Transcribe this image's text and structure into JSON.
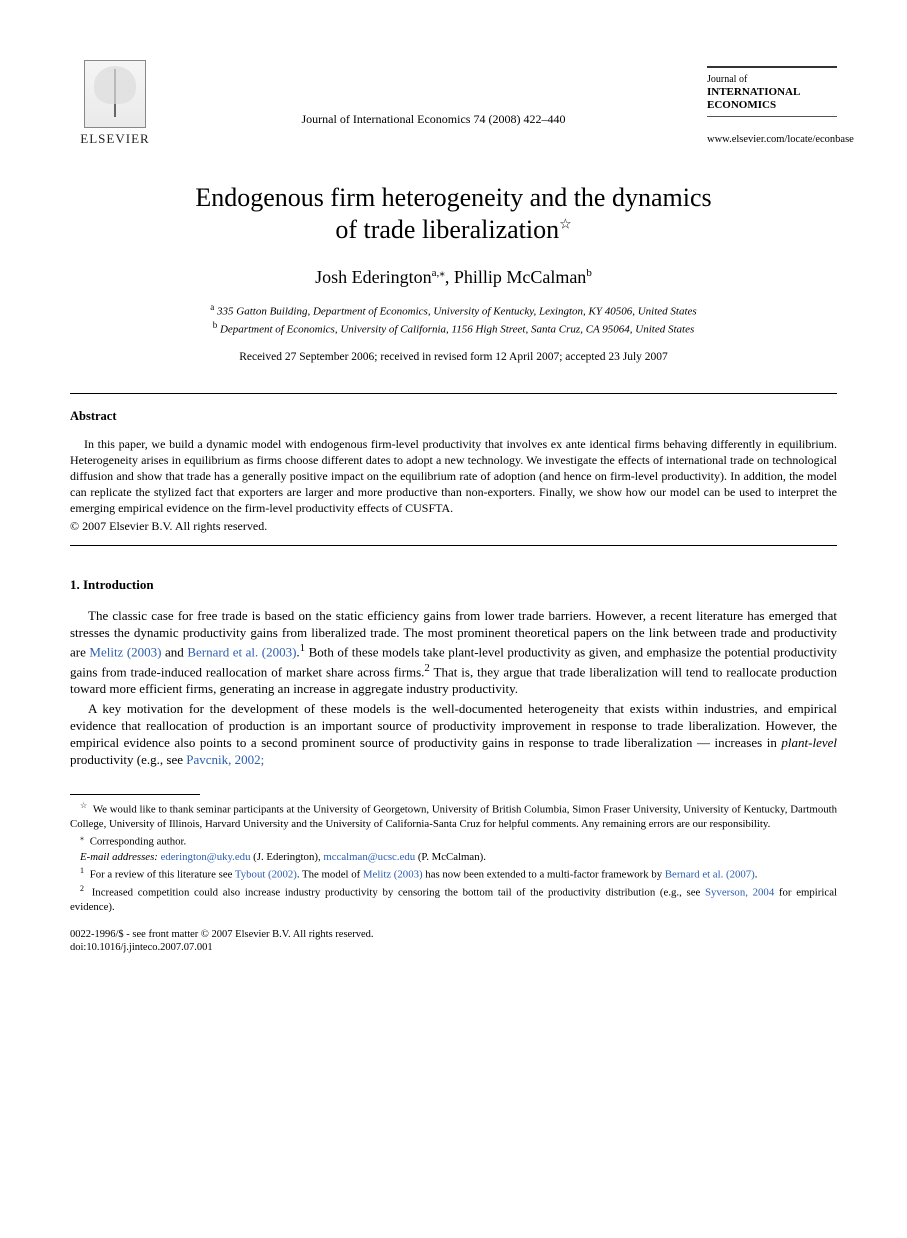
{
  "header": {
    "publisher_name": "ELSEVIER",
    "journal_reference": "Journal of International Economics 74 (2008) 422–440",
    "journal_box_line1": "Journal of",
    "journal_box_line2": "INTERNATIONAL",
    "journal_box_line3": "ECONOMICS",
    "journal_url": "www.elsevier.com/locate/econbase"
  },
  "title": {
    "line1": "Endogenous firm heterogeneity and the dynamics",
    "line2": "of trade liberalization",
    "star": "☆"
  },
  "authors": {
    "a1_name": "Josh Ederington",
    "a1_sup": "a,",
    "a1_corr": "⁎",
    "sep": ", ",
    "a2_name": "Phillip McCalman",
    "a2_sup": "b"
  },
  "affiliations": {
    "a_sup": "a",
    "a_text": " 335 Gatton Building, Department of Economics, University of Kentucky, Lexington, KY 40506, United States",
    "b_sup": "b",
    "b_text": " Department of Economics, University of California, 1156 High Street, Santa Cruz, CA 95064, United States"
  },
  "dates": "Received 27 September 2006; received in revised form 12 April 2007; accepted 23 July 2007",
  "abstract": {
    "heading": "Abstract",
    "body": "In this paper, we build a dynamic model with endogenous firm-level productivity that involves ex ante identical firms behaving differently in equilibrium. Heterogeneity arises in equilibrium as firms choose different dates to adopt a new technology. We investigate the effects of international trade on technological diffusion and show that trade has a generally positive impact on the equilibrium rate of adoption (and hence on firm-level productivity). In addition, the model can replicate the stylized fact that exporters are larger and more productive than non-exporters. Finally, we show how our model can be used to interpret the emerging empirical evidence on the firm-level productivity effects of CUSFTA.",
    "copyright": "© 2007 Elsevier B.V. All rights reserved."
  },
  "intro": {
    "heading": "1. Introduction",
    "p1_a": "The classic case for free trade is based on the static efficiency gains from lower trade barriers. However, a recent literature has emerged that stresses the dynamic productivity gains from liberalized trade. The most prominent theoretical papers on the link between trade and productivity are ",
    "p1_link1": "Melitz (2003)",
    "p1_b": " and ",
    "p1_link2": "Bernard et al. (2003)",
    "p1_c": ".",
    "p1_sup1": "1",
    "p1_d": " Both of these models take plant-level productivity as given, and emphasize the potential productivity gains from trade-induced reallocation of market share across firms.",
    "p1_sup2": "2",
    "p1_e": " That is, they argue that trade liberalization will tend to reallocate production toward more efficient firms, generating an increase in aggregate industry productivity.",
    "p2_a": "A key motivation for the development of these models is the well-documented heterogeneity that exists within industries, and empirical evidence that reallocation of production is an important source of productivity improvement in response to trade liberalization. However, the empirical evidence also points to a second prominent source of productivity gains in response to trade liberalization — increases in ",
    "p2_em": "plant-level",
    "p2_b": " productivity (e.g., see ",
    "p2_link": "Pavcnik, 2002;"
  },
  "footnotes": {
    "star_mark": "☆",
    "star_text": " We would like to thank seminar participants at the University of Georgetown, University of British Columbia, Simon Fraser University, University of Kentucky, Dartmouth College, University of Illinois, Harvard University and the University of California-Santa Cruz for helpful comments. Any remaining errors are our responsibility.",
    "corr_mark": "⁎",
    "corr_text": " Corresponding author.",
    "email_label": "E-mail addresses:",
    "email1": "ederington@uky.edu",
    "email1_who": " (J. Ederington), ",
    "email2": "mccalman@ucsc.edu",
    "email2_who": " (P. McCalman).",
    "fn1_mark": "1",
    "fn1_a": " For a review of this literature see ",
    "fn1_link1": "Tybout (2002)",
    "fn1_b": ". The model of ",
    "fn1_link2": "Melitz (2003)",
    "fn1_c": " has now been extended to a multi-factor framework by ",
    "fn1_link3": "Bernard et al. (2007)",
    "fn1_d": ".",
    "fn2_mark": "2",
    "fn2_a": " Increased competition could also increase industry productivity by censoring the bottom tail of the productivity distribution (e.g., see ",
    "fn2_link": "Syverson, 2004",
    "fn2_b": " for empirical evidence)."
  },
  "footer": {
    "line1": "0022-1996/$ - see front matter © 2007 Elsevier B.V. All rights reserved.",
    "line2": "doi:10.1016/j.jinteco.2007.07.001"
  },
  "colors": {
    "link": "#2a5db0",
    "text": "#000000",
    "rule": "#000000"
  }
}
